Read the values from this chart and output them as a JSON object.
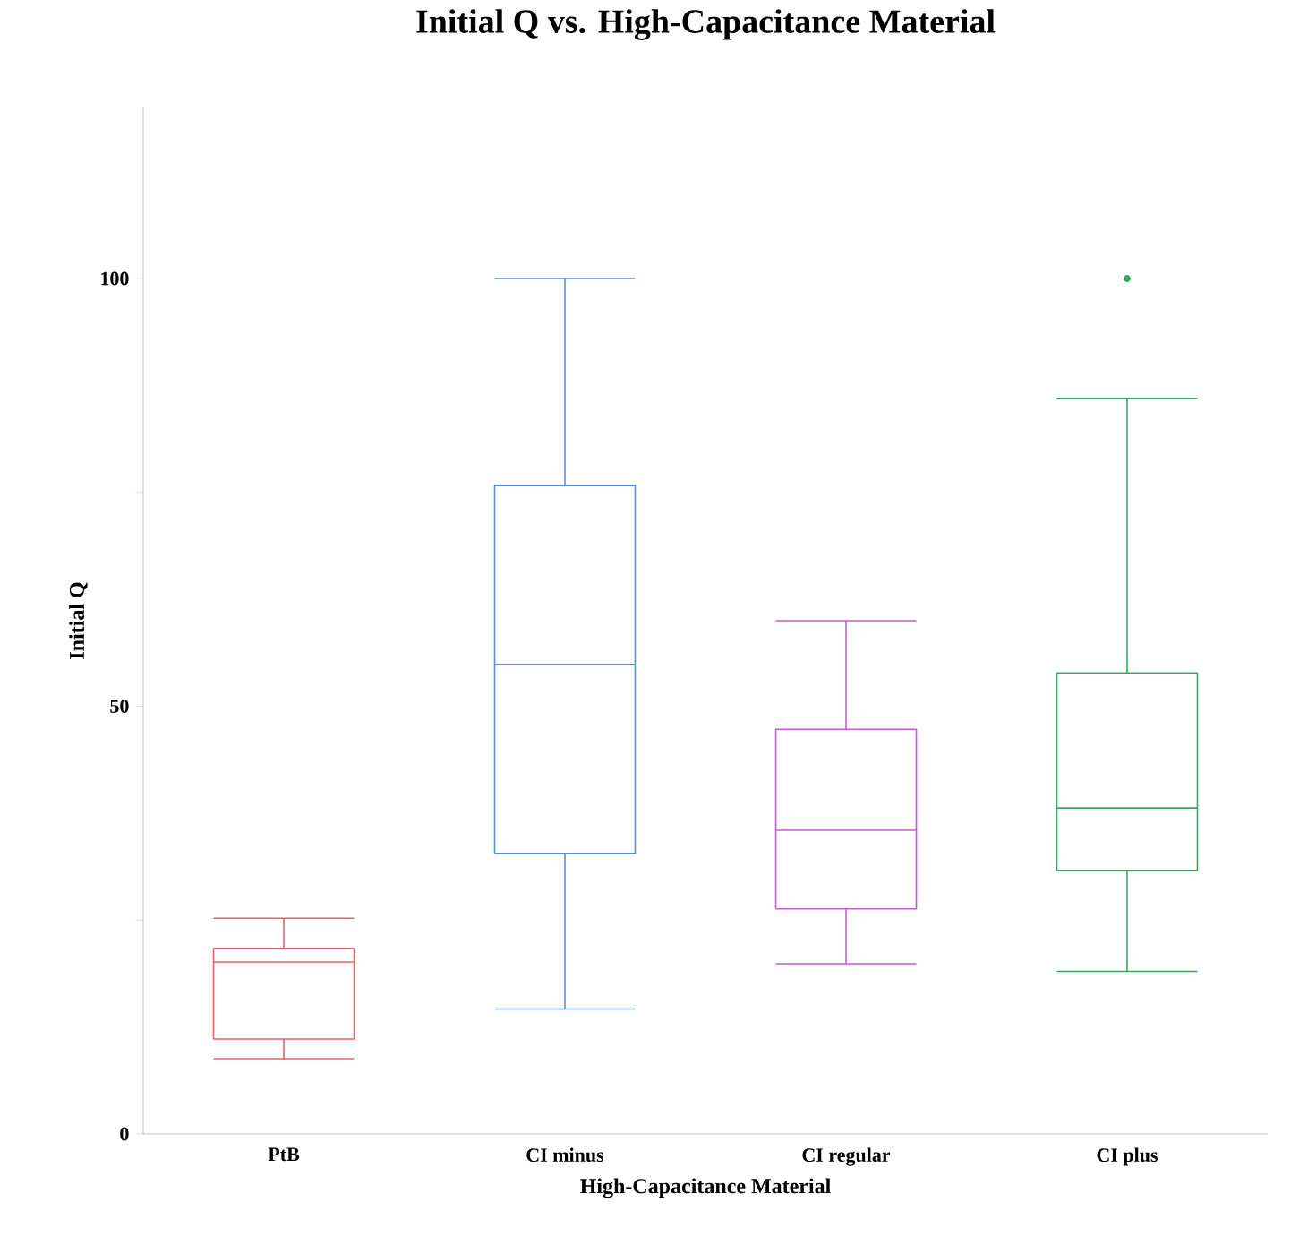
{
  "chart_data": {
    "type": "box",
    "title": "Initial Q vs. High-Capacitance Material",
    "xlabel": "High-Capacitance Material",
    "ylabel": "Initial Q",
    "categories": [
      "PtB",
      "CI minus",
      "CI regular",
      "CI plus"
    ],
    "colors": [
      "#e8606b",
      "#5b8fd9",
      "#c85ad6",
      "#3aa65a"
    ],
    "boxes": [
      {
        "low": 8.8,
        "q1": 11.1,
        "median": 20.1,
        "q3": 21.7,
        "high": 25.2
      },
      {
        "low": 14.6,
        "q1": 32.8,
        "median": 54.9,
        "q3": 75.8,
        "high": 100
      },
      {
        "low": 19.9,
        "q1": 26.3,
        "median": 35.5,
        "q3": 47.3,
        "high": 60
      },
      {
        "low": 19,
        "q1": 30.8,
        "median": 38.1,
        "q3": 53.9,
        "high": 86,
        "outliers": [
          100
        ]
      }
    ],
    "ylim": [
      0,
      120
    ],
    "yticks": [
      0,
      {
        "value": 25,
        "label": null
      },
      50,
      {
        "value": 75,
        "label": null
      },
      100
    ],
    "grid": false
  }
}
